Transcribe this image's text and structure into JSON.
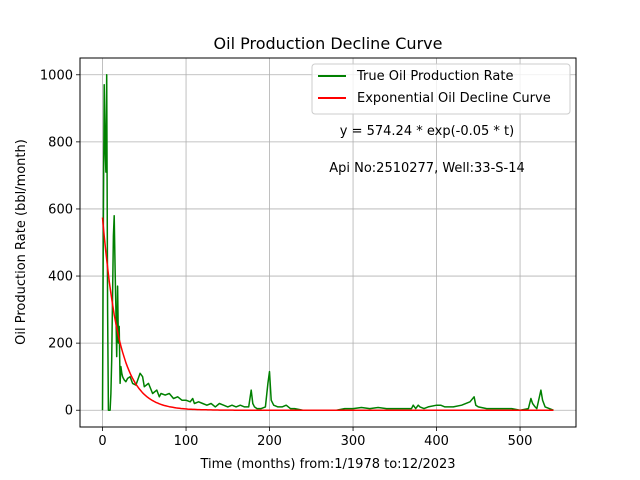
{
  "chart_data": {
    "type": "line",
    "title": "Oil Production Decline Curve",
    "xlabel": "Time (months) from:1/1978 to:12/2023",
    "ylabel": "Oil Production Rate (bbl/month)",
    "xlim": [
      -27,
      567
    ],
    "ylim": [
      -50,
      1050
    ],
    "xticks": [
      0,
      100,
      200,
      300,
      400,
      500
    ],
    "yticks": [
      0,
      200,
      400,
      600,
      800,
      1000
    ],
    "grid": true,
    "legend_position": "top-right",
    "annotations": [
      "y = 574.24 * exp(-0.05 * t)",
      "Api No:2510277, Well:33-S-14"
    ],
    "series": [
      {
        "name": "True Oil Production Rate",
        "color": "#008000",
        "x": [
          0,
          1,
          2,
          3,
          4,
          5,
          6,
          7,
          8,
          9,
          10,
          11,
          12,
          13,
          14,
          15,
          16,
          17,
          18,
          19,
          20,
          21,
          22,
          23,
          24,
          25,
          26,
          28,
          30,
          33,
          36,
          40,
          45,
          48,
          50,
          55,
          60,
          65,
          68,
          70,
          75,
          80,
          85,
          90,
          95,
          100,
          105,
          108,
          110,
          115,
          120,
          125,
          130,
          135,
          140,
          145,
          150,
          155,
          160,
          165,
          170,
          175,
          178,
          180,
          182,
          185,
          190,
          195,
          198,
          200,
          202,
          205,
          210,
          215,
          220,
          225,
          230,
          240,
          250,
          260,
          270,
          280,
          290,
          300,
          310,
          320,
          330,
          340,
          350,
          360,
          370,
          372,
          375,
          378,
          380,
          385,
          390,
          400,
          405,
          410,
          420,
          430,
          440,
          445,
          447,
          450,
          460,
          470,
          480,
          490,
          500,
          510,
          513,
          515,
          518,
          520,
          525,
          527,
          530,
          535,
          540
        ],
        "y": [
          0,
          580,
          970,
          780,
          710,
          1000,
          300,
          0,
          0,
          0,
          50,
          150,
          350,
          520,
          580,
          420,
          300,
          160,
          370,
          200,
          250,
          80,
          130,
          110,
          100,
          95,
          90,
          85,
          95,
          100,
          80,
          75,
          110,
          100,
          70,
          80,
          50,
          60,
          40,
          50,
          45,
          50,
          35,
          40,
          30,
          30,
          25,
          35,
          20,
          25,
          20,
          15,
          20,
          10,
          20,
          15,
          10,
          15,
          10,
          15,
          10,
          10,
          60,
          20,
          10,
          5,
          5,
          10,
          80,
          115,
          30,
          15,
          10,
          10,
          15,
          5,
          5,
          0,
          0,
          0,
          0,
          0,
          5,
          5,
          8,
          5,
          8,
          5,
          5,
          5,
          5,
          15,
          5,
          15,
          10,
          5,
          10,
          15,
          15,
          10,
          10,
          15,
          25,
          40,
          15,
          10,
          5,
          5,
          5,
          5,
          0,
          5,
          35,
          20,
          10,
          5,
          60,
          30,
          10,
          5,
          0
        ]
      },
      {
        "name": "Exponential Oil Decline Curve",
        "color": "#ff0000",
        "function": {
          "a": 574.24,
          "b": 0.05
        },
        "x_start": 0,
        "x_end": 540
      }
    ]
  }
}
